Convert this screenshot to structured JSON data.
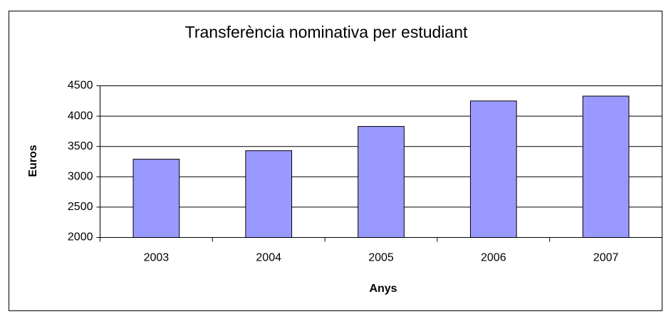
{
  "chart_data": {
    "type": "bar",
    "title": "Transferència nominativa per estudiant",
    "x_label": "Anys",
    "y_label": "Euros",
    "categories": [
      "2003",
      "2004",
      "2005",
      "2006",
      "2007"
    ],
    "values": [
      3290,
      3430,
      3830,
      4250,
      4330
    ],
    "color": "#9999ff",
    "ylim": [
      2000,
      4500
    ],
    "yticks": [
      2000,
      2500,
      3000,
      3500,
      4000,
      4500
    ],
    "grid": true
  }
}
